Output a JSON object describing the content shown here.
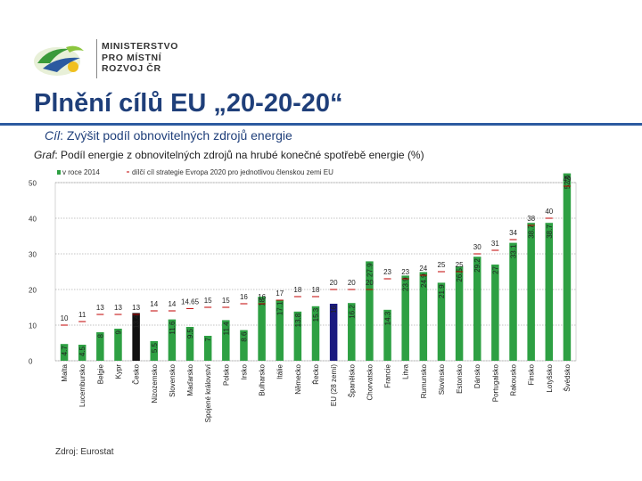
{
  "header": {
    "ministry_lines": [
      "MINISTERSTVO",
      "PRO MÍSTNÍ",
      "ROZVOJ ČR"
    ],
    "title": "Plnění cílů EU „20-20-20“",
    "goal_prefix": "Cíl",
    "goal_text": ": Zvýšit podíl obnovitelných zdrojů energie",
    "graf_prefix": "Graf",
    "graf_text": ": Podíl energie z obnovitelných zdrojů na hrubé konečné spotřebě energie (%)"
  },
  "source": "Zdroj: Eurostat",
  "colors": {
    "actual": "#2ea043",
    "eu_bar": "#1a1a80",
    "cz_bar": "#111111",
    "target_line": "#c00000",
    "title": "#1f3f7a"
  },
  "chart_data": {
    "type": "bar",
    "legend": {
      "actual_label": "v roce 2014",
      "target_label": "dílčí cíl strategie Evropa 2020 pro jednotlivou členskou zemi EU",
      "placement": "top-left"
    },
    "ylim": [
      0,
      50
    ],
    "yticks": [
      0,
      10,
      20,
      30,
      40,
      50
    ],
    "grid": true,
    "categories": [
      "Malta",
      "Lucembursko",
      "Belgie",
      "Kypr",
      "Česko",
      "Nizozemsko",
      "Slovensko",
      "Maďarsko",
      "Spojené království",
      "Polsko",
      "Irsko",
      "Bulharsko",
      "Itálie",
      "Německo",
      "Řecko",
      "EU (28 zemí)",
      "Španělsko",
      "Chorvatsko",
      "Francie",
      "Litva",
      "Rumunsko",
      "Slovinsko",
      "Estonsko",
      "Dánsko",
      "Portugalsko",
      "Rakousko",
      "Finsko",
      "Lotyšsko",
      "Švédsko"
    ],
    "series": [
      {
        "name": "v roce 2014",
        "values": [
          4.7,
          4.5,
          8,
          9,
          13.4,
          5.5,
          11.6,
          9.5,
          7,
          11.4,
          8.6,
          18,
          17.1,
          13.8,
          15.3,
          16,
          16.2,
          27.9,
          14.3,
          23.9,
          24.9,
          21.9,
          26.5,
          29.2,
          27,
          33.1,
          38.7,
          38.7,
          52.6
        ]
      },
      {
        "name": "dílčí cíl strategie Evropa 2020 pro jednotlivou členskou zemi EU",
        "values": [
          10,
          11,
          13,
          13,
          13,
          14,
          14,
          14.65,
          15,
          15,
          16,
          16,
          17,
          18,
          18,
          20,
          20,
          20,
          23,
          23,
          24,
          25,
          25,
          30,
          31,
          34,
          38,
          40,
          49
        ]
      }
    ],
    "actual_labels": [
      "4.7",
      "4.5",
      "8",
      "9",
      "13.4",
      "5.5",
      "11.6",
      "9.5",
      "7",
      "11.4",
      "8.6",
      "18",
      "17.1",
      "13.8",
      "15.3",
      "16",
      "16.2",
      "27.9",
      "14.3",
      "23.9",
      "24.9",
      "21.9",
      "26.5",
      "29.2",
      "27",
      "33.1",
      "38.7",
      "38.7",
      "52.6"
    ],
    "target_labels": [
      "10",
      "11",
      "13",
      "13",
      "13",
      "14",
      "14",
      "14.65",
      "15",
      "15",
      "16",
      "16",
      "17",
      "18",
      "18",
      "20",
      "20",
      "20",
      "23",
      "23",
      "24",
      "25",
      "25",
      "30",
      "31",
      "34",
      "38",
      "40",
      "49"
    ]
  }
}
